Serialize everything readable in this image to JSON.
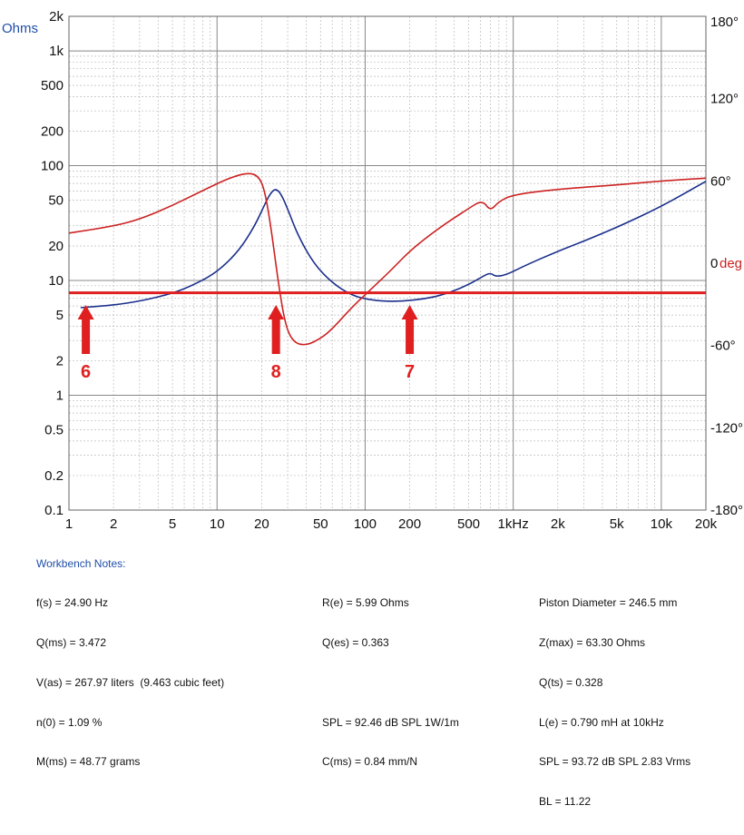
{
  "chart_data": {
    "type": "line",
    "x_scale": "log",
    "y_scale": "log",
    "grid": true,
    "xlim": [
      1,
      20000
    ],
    "ylim": [
      0.1,
      2000
    ],
    "y2lim": [
      -180,
      180
    ],
    "ylabel": "Ohms",
    "y2label": "deg",
    "x_ticks": [
      {
        "v": 1,
        "l": "1"
      },
      {
        "v": 2,
        "l": "2"
      },
      {
        "v": 5,
        "l": "5"
      },
      {
        "v": 10,
        "l": "10"
      },
      {
        "v": 20,
        "l": "20"
      },
      {
        "v": 50,
        "l": "50"
      },
      {
        "v": 100,
        "l": "100"
      },
      {
        "v": 200,
        "l": "200"
      },
      {
        "v": 500,
        "l": "500"
      },
      {
        "v": 1000,
        "l": "1kHz"
      },
      {
        "v": 2000,
        "l": "2k"
      },
      {
        "v": 5000,
        "l": "5k"
      },
      {
        "v": 10000,
        "l": "10k"
      },
      {
        "v": 20000,
        "l": "20k"
      }
    ],
    "y_ticks": [
      {
        "v": 2000,
        "l": "2k"
      },
      {
        "v": 1000,
        "l": "1k"
      },
      {
        "v": 500,
        "l": "500"
      },
      {
        "v": 200,
        "l": "200"
      },
      {
        "v": 100,
        "l": "100"
      },
      {
        "v": 50,
        "l": "50"
      },
      {
        "v": 20,
        "l": "20"
      },
      {
        "v": 10,
        "l": "10"
      },
      {
        "v": 5,
        "l": "5"
      },
      {
        "v": 2,
        "l": "2"
      },
      {
        "v": 1,
        "l": "1"
      },
      {
        "v": 0.5,
        "l": "0.5"
      },
      {
        "v": 0.2,
        "l": "0.2"
      },
      {
        "v": 0.1,
        "l": "0.1"
      }
    ],
    "y2_ticks": [
      {
        "v": 180,
        "l": "180°"
      },
      {
        "v": 120,
        "l": "120°"
      },
      {
        "v": 60,
        "l": "60°"
      },
      {
        "v": 0,
        "l": "0"
      },
      {
        "v": -60,
        "l": "-60°"
      },
      {
        "v": -120,
        "l": "-120°"
      },
      {
        "v": -180,
        "l": "-180°"
      }
    ],
    "series": [
      {
        "axis": "left",
        "color": "#1a2f8c",
        "points": [
          [
            1.2,
            5.8
          ],
          [
            2,
            6.1
          ],
          [
            3,
            6.6
          ],
          [
            5,
            7.7
          ],
          [
            7,
            9.2
          ],
          [
            10,
            11.8
          ],
          [
            14,
            18
          ],
          [
            18,
            30
          ],
          [
            21,
            46
          ],
          [
            23,
            58
          ],
          [
            24.9,
            63.3
          ],
          [
            27,
            57
          ],
          [
            30,
            42
          ],
          [
            35,
            25
          ],
          [
            45,
            14
          ],
          [
            60,
            9.5
          ],
          [
            80,
            7.5
          ],
          [
            100,
            6.9
          ],
          [
            130,
            6.6
          ],
          [
            180,
            6.6
          ],
          [
            250,
            6.9
          ],
          [
            350,
            7.6
          ],
          [
            500,
            9.2
          ],
          [
            620,
            10.8
          ],
          [
            700,
            11.7
          ],
          [
            760,
            10.8
          ],
          [
            900,
            11.2
          ],
          [
            1200,
            13.5
          ],
          [
            2000,
            18
          ],
          [
            3000,
            22
          ],
          [
            5000,
            29
          ],
          [
            10000,
            44
          ],
          [
            20000,
            73
          ]
        ]
      },
      {
        "axis": "right",
        "color": "#cc2222",
        "points": [
          [
            1,
            22
          ],
          [
            2,
            27
          ],
          [
            3,
            32
          ],
          [
            5,
            42
          ],
          [
            8,
            53
          ],
          [
            12,
            62
          ],
          [
            16,
            66
          ],
          [
            19,
            64
          ],
          [
            21,
            53
          ],
          [
            23,
            28
          ],
          [
            26,
            -15
          ],
          [
            29,
            -46
          ],
          [
            33,
            -58
          ],
          [
            40,
            -60
          ],
          [
            50,
            -55
          ],
          [
            60,
            -48
          ],
          [
            80,
            -33
          ],
          [
            100,
            -23
          ],
          [
            150,
            -5
          ],
          [
            200,
            9
          ],
          [
            300,
            24
          ],
          [
            500,
            40
          ],
          [
            620,
            46
          ],
          [
            700,
            38
          ],
          [
            800,
            45
          ],
          [
            1000,
            50
          ],
          [
            2000,
            54
          ],
          [
            5000,
            57
          ],
          [
            10000,
            60
          ],
          [
            20000,
            62
          ]
        ]
      }
    ],
    "annotations": [
      {
        "type": "hline",
        "y": 7.8,
        "color": "#e02020"
      },
      {
        "type": "arrow",
        "x": 1.3,
        "label": "6"
      },
      {
        "type": "arrow",
        "x": 25,
        "label": "8"
      },
      {
        "type": "arrow",
        "x": 200,
        "label": "7"
      }
    ]
  },
  "notes": {
    "title": "Workbench Notes:",
    "col1": [
      "f(s) = 24.90 Hz",
      "Q(ms) = 3.472",
      "V(as) = 267.97 liters  (9.463 cubic feet)",
      "n(0) = 1.09 %",
      "M(ms) = 48.77 grams"
    ],
    "col2": [
      "R(e) = 5.99 Ohms",
      "Q(es) = 0.363",
      "",
      "SPL = 92.46 dB SPL 1W/1m",
      "C(ms) = 0.84 mm/N"
    ],
    "col3": [
      "Piston Diameter = 246.5 mm",
      "Z(max) = 63.30 Ohms",
      "Q(ts) = 0.328",
      "L(e) = 0.790 mH at 10kHz",
      "SPL = 93.72 dB SPL 2.83 Vrms",
      "BL = 11.22"
    ]
  },
  "colors": {
    "impedance": "#1a2f8c",
    "phase": "#cc2222",
    "marker": "#e02020",
    "axis_label_blue": "#1f4fa8"
  }
}
